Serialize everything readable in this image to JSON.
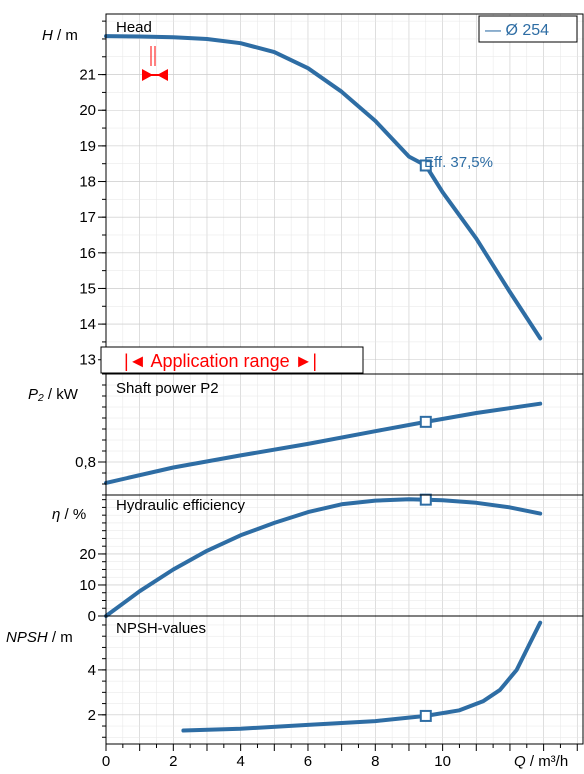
{
  "chart_data": [
    {
      "type": "line",
      "title": "Head",
      "ylabel_symbol": "H",
      "ylabel_unit": "m",
      "ylim": [
        12.6,
        22.7
      ],
      "yticks": [
        13,
        14,
        15,
        16,
        17,
        18,
        19,
        20,
        21
      ],
      "legend": {
        "label": "— Ø 254",
        "placement": "top-right"
      },
      "series": [
        {
          "name": "Ø 254",
          "x": [
            0,
            1,
            2,
            3,
            4,
            5,
            6,
            7,
            8,
            9,
            9.5,
            10,
            11,
            12,
            12.9
          ],
          "y": [
            22.08,
            22.07,
            22.05,
            22.0,
            21.88,
            21.63,
            21.18,
            20.52,
            19.7,
            18.7,
            18.45,
            17.7,
            16.4,
            14.9,
            13.6
          ]
        }
      ],
      "marker": {
        "x": 9.5,
        "y": 18.45
      },
      "annotations": {
        "efficiency": "Eff.  37,5%",
        "application_range": "|◄ Application range ►|"
      }
    },
    {
      "type": "line",
      "title": "Shaft power P2",
      "ylabel_symbol": "P₂",
      "ylabel_unit": "kW",
      "ylim": [
        0.74,
        0.96
      ],
      "yticks": [
        0.8
      ],
      "ytick_labels": [
        "0,8"
      ],
      "series": [
        {
          "x": [
            0,
            2,
            4,
            6,
            8,
            9.5,
            11,
            12.9
          ],
          "y": [
            0.762,
            0.79,
            0.812,
            0.833,
            0.856,
            0.873,
            0.889,
            0.906
          ]
        }
      ],
      "marker": {
        "x": 9.5,
        "y": 0.873
      }
    },
    {
      "type": "line",
      "title": "Hydraulic efficiency",
      "ylabel_symbol": "η",
      "ylabel_unit": "%",
      "ylim": [
        0,
        39
      ],
      "yticks": [
        0,
        10,
        20
      ],
      "series": [
        {
          "x": [
            0,
            1,
            2,
            3,
            4,
            5,
            6,
            7,
            8,
            9,
            9.5,
            10,
            11,
            12,
            12.9
          ],
          "y": [
            0,
            8,
            15,
            21,
            26,
            30,
            33.5,
            36,
            37.2,
            37.6,
            37.5,
            37.3,
            36.5,
            35,
            33
          ]
        }
      ],
      "marker": {
        "x": 9.5,
        "y": 37.5
      }
    },
    {
      "type": "line",
      "title": "NPSH-values",
      "ylabel_symbol": "NPSH",
      "ylabel_unit": "m",
      "ylim": [
        0.7,
        6.4
      ],
      "yticks": [
        2,
        4
      ],
      "series": [
        {
          "x": [
            2.3,
            4,
            6,
            8,
            9.5,
            10.5,
            11.2,
            11.7,
            12.2,
            12.6,
            12.9
          ],
          "y": [
            1.3,
            1.38,
            1.55,
            1.72,
            1.95,
            2.2,
            2.6,
            3.1,
            4.0,
            5.2,
            6.1
          ]
        }
      ],
      "marker": {
        "x": 9.5,
        "y": 1.95
      }
    }
  ],
  "x_axis": {
    "label_symbol": "Q",
    "label_unit": "m³/h",
    "xlim": [
      0,
      14.2
    ],
    "ticks": [
      0,
      2,
      4,
      6,
      8,
      10
    ]
  }
}
